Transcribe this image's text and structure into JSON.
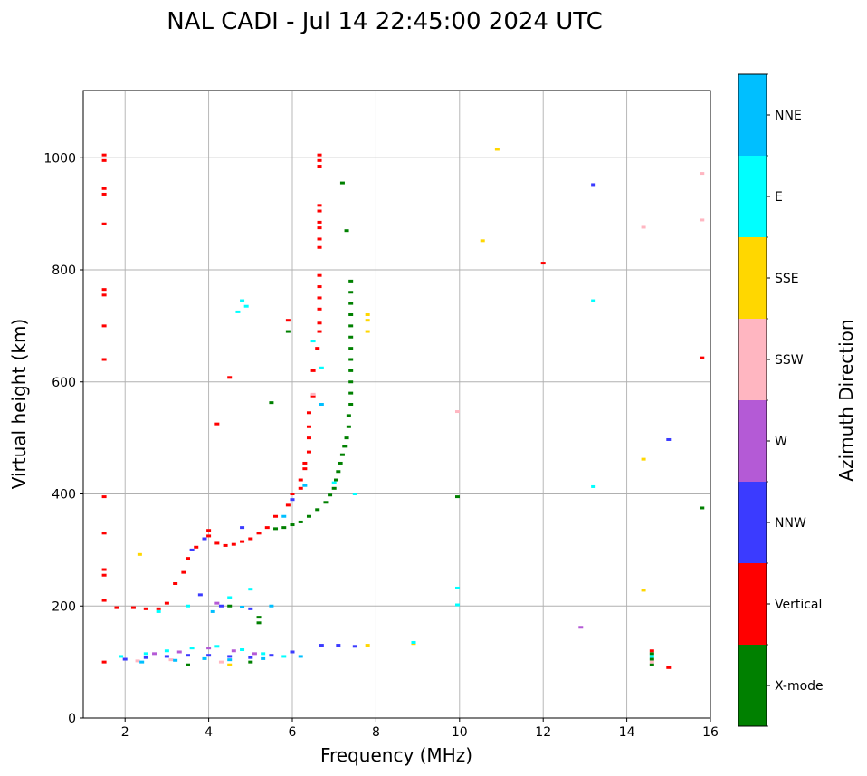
{
  "chart_data": {
    "type": "scatter",
    "title": "NAL CADI - Jul 14 22:45:00 2024 UTC",
    "xlabel": "Frequency (MHz)",
    "ylabel": "Virtual height (km)",
    "xlim": [
      1,
      16
    ],
    "ylim": [
      0,
      1120
    ],
    "xticks": [
      2,
      4,
      6,
      8,
      10,
      12,
      14,
      16
    ],
    "yticks": [
      0,
      200,
      400,
      600,
      800,
      1000
    ],
    "grid": true,
    "colorbar": {
      "label": "Azimuth Direction",
      "categories": [
        "X-mode",
        "Vertical",
        "NNW",
        "W",
        "SSW",
        "SSE",
        "E",
        "NNE"
      ],
      "colors": [
        "#008000",
        "#ff0000",
        "#3b3bff",
        "#b45ad6",
        "#ffb6c1",
        "#ffd700",
        "#00ffff",
        "#00bfff"
      ]
    },
    "series": [
      {
        "name": "X-mode",
        "points": [
          [
            5.6,
            338
          ],
          [
            5.8,
            340
          ],
          [
            6.0,
            345
          ],
          [
            6.2,
            350
          ],
          [
            6.4,
            360
          ],
          [
            6.6,
            372
          ],
          [
            6.8,
            385
          ],
          [
            6.9,
            398
          ],
          [
            7.0,
            410
          ],
          [
            7.05,
            425
          ],
          [
            7.1,
            440
          ],
          [
            7.15,
            455
          ],
          [
            7.2,
            470
          ],
          [
            7.25,
            485
          ],
          [
            7.3,
            500
          ],
          [
            7.35,
            520
          ],
          [
            7.35,
            540
          ],
          [
            7.4,
            560
          ],
          [
            7.4,
            580
          ],
          [
            7.4,
            600
          ],
          [
            7.4,
            620
          ],
          [
            7.4,
            640
          ],
          [
            7.4,
            660
          ],
          [
            7.4,
            680
          ],
          [
            7.4,
            700
          ],
          [
            7.4,
            720
          ],
          [
            7.4,
            740
          ],
          [
            7.4,
            760
          ],
          [
            7.4,
            780
          ],
          [
            7.3,
            870
          ],
          [
            7.2,
            955
          ],
          [
            5.9,
            690
          ],
          [
            5.5,
            563
          ],
          [
            9.95,
            395
          ],
          [
            15.8,
            375
          ],
          [
            14.6,
            95
          ],
          [
            14.6,
            105
          ],
          [
            14.6,
            115
          ],
          [
            5.2,
            170
          ],
          [
            5.2,
            180
          ],
          [
            4.5,
            200
          ],
          [
            5.0,
            100
          ],
          [
            3.5,
            95
          ]
        ]
      },
      {
        "name": "Vertical",
        "points": [
          [
            1.5,
            1005
          ],
          [
            1.5,
            995
          ],
          [
            1.5,
            945
          ],
          [
            1.5,
            935
          ],
          [
            1.5,
            882
          ],
          [
            1.5,
            765
          ],
          [
            1.5,
            755
          ],
          [
            1.5,
            700
          ],
          [
            1.5,
            640
          ],
          [
            1.5,
            395
          ],
          [
            1.5,
            330
          ],
          [
            1.5,
            265
          ],
          [
            1.5,
            255
          ],
          [
            1.5,
            210
          ],
          [
            1.5,
            100
          ],
          [
            6.65,
            1005
          ],
          [
            6.65,
            995
          ],
          [
            6.65,
            985
          ],
          [
            6.65,
            915
          ],
          [
            6.65,
            905
          ],
          [
            6.65,
            885
          ],
          [
            6.65,
            875
          ],
          [
            6.65,
            855
          ],
          [
            6.65,
            840
          ],
          [
            6.65,
            790
          ],
          [
            6.65,
            770
          ],
          [
            6.65,
            750
          ],
          [
            6.65,
            730
          ],
          [
            6.65,
            705
          ],
          [
            6.65,
            690
          ],
          [
            6.6,
            660
          ],
          [
            6.5,
            620
          ],
          [
            6.5,
            575
          ],
          [
            6.4,
            545
          ],
          [
            6.4,
            520
          ],
          [
            6.4,
            500
          ],
          [
            6.4,
            475
          ],
          [
            6.3,
            455
          ],
          [
            6.3,
            445
          ],
          [
            6.2,
            425
          ],
          [
            6.2,
            410
          ],
          [
            6.0,
            400
          ],
          [
            5.9,
            380
          ],
          [
            5.6,
            360
          ],
          [
            5.4,
            340
          ],
          [
            5.2,
            330
          ],
          [
            5.0,
            320
          ],
          [
            4.8,
            315
          ],
          [
            4.6,
            310
          ],
          [
            4.4,
            308
          ],
          [
            4.2,
            312
          ],
          [
            4.0,
            325
          ],
          [
            4.0,
            335
          ],
          [
            3.7,
            305
          ],
          [
            3.5,
            285
          ],
          [
            3.4,
            260
          ],
          [
            3.2,
            240
          ],
          [
            3.0,
            205
          ],
          [
            2.8,
            195
          ],
          [
            2.5,
            195
          ],
          [
            2.2,
            197
          ],
          [
            1.8,
            197
          ],
          [
            4.5,
            608
          ],
          [
            4.2,
            525
          ],
          [
            5.9,
            710
          ],
          [
            12.0,
            812
          ],
          [
            15.8,
            643
          ],
          [
            15.0,
            90
          ],
          [
            14.6,
            120
          ]
        ]
      },
      {
        "name": "NNW",
        "points": [
          [
            2.0,
            105
          ],
          [
            2.5,
            108
          ],
          [
            3.0,
            110
          ],
          [
            3.5,
            112
          ],
          [
            4.0,
            112
          ],
          [
            4.5,
            110
          ],
          [
            5.0,
            108
          ],
          [
            5.5,
            112
          ],
          [
            6.0,
            118
          ],
          [
            6.7,
            130
          ],
          [
            7.1,
            130
          ],
          [
            7.5,
            128
          ],
          [
            3.8,
            220
          ],
          [
            4.3,
            200
          ],
          [
            5.0,
            195
          ],
          [
            3.6,
            300
          ],
          [
            3.9,
            320
          ],
          [
            4.8,
            340
          ],
          [
            6.0,
            390
          ],
          [
            13.2,
            952
          ],
          [
            15.0,
            497
          ]
        ]
      },
      {
        "name": "W",
        "points": [
          [
            2.7,
            115
          ],
          [
            3.3,
            118
          ],
          [
            4.0,
            125
          ],
          [
            4.6,
            120
          ],
          [
            5.1,
            115
          ],
          [
            4.2,
            205
          ],
          [
            12.9,
            162
          ]
        ]
      },
      {
        "name": "SSW",
        "points": [
          [
            2.3,
            102
          ],
          [
            3.1,
            104
          ],
          [
            4.3,
            100
          ],
          [
            6.5,
            578
          ],
          [
            9.95,
            547
          ],
          [
            15.8,
            972
          ],
          [
            15.8,
            889
          ],
          [
            14.4,
            876
          ],
          [
            14.6,
            100
          ]
        ]
      },
      {
        "name": "SSE",
        "points": [
          [
            10.9,
            1015
          ],
          [
            10.55,
            852
          ],
          [
            7.8,
            720
          ],
          [
            7.8,
            710
          ],
          [
            7.8,
            690
          ],
          [
            7.8,
            130
          ],
          [
            8.9,
            133
          ],
          [
            14.4,
            462
          ],
          [
            14.4,
            228
          ],
          [
            2.35,
            292
          ],
          [
            4.5,
            95
          ]
        ]
      },
      {
        "name": "E",
        "points": [
          [
            4.8,
            745
          ],
          [
            4.9,
            735
          ],
          [
            4.7,
            725
          ],
          [
            6.5,
            673
          ],
          [
            6.7,
            625
          ],
          [
            7.0,
            420
          ],
          [
            7.5,
            400
          ],
          [
            1.9,
            110
          ],
          [
            2.5,
            115
          ],
          [
            3.0,
            120
          ],
          [
            3.6,
            125
          ],
          [
            4.2,
            128
          ],
          [
            4.8,
            122
          ],
          [
            5.3,
            115
          ],
          [
            5.8,
            110
          ],
          [
            2.8,
            190
          ],
          [
            3.5,
            200
          ],
          [
            4.5,
            215
          ],
          [
            5.0,
            230
          ],
          [
            9.95,
            232
          ],
          [
            9.95,
            202
          ],
          [
            8.9,
            135
          ],
          [
            13.2,
            745
          ],
          [
            13.2,
            413
          ],
          [
            14.6,
            110
          ]
        ]
      },
      {
        "name": "NNE",
        "points": [
          [
            2.4,
            100
          ],
          [
            3.2,
            103
          ],
          [
            3.9,
            106
          ],
          [
            4.5,
            104
          ],
          [
            5.3,
            106
          ],
          [
            6.2,
            110
          ],
          [
            4.1,
            190
          ],
          [
            4.8,
            198
          ],
          [
            5.5,
            200
          ],
          [
            6.3,
            415
          ],
          [
            6.7,
            560
          ],
          [
            5.8,
            360
          ]
        ]
      }
    ]
  }
}
